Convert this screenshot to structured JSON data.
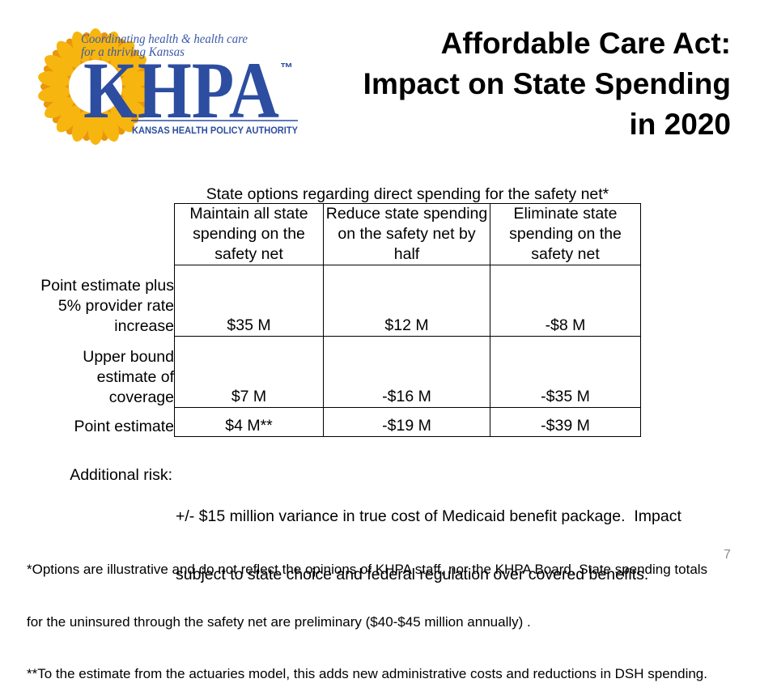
{
  "slide": {
    "title_lines": [
      "Affordable Care Act:",
      "Impact on State Spending",
      "in 2020"
    ],
    "page_number": "7"
  },
  "logo": {
    "tagline_lines": [
      "Coordinating health & health care",
      "for a thriving Kansas"
    ],
    "wordmark": "KHPA",
    "trademark": "™",
    "org_name": "KANSAS HEALTH POLICY AUTHORITY",
    "colors": {
      "brand_blue": "#2C4DA0",
      "tagline_blue": "#3A5AA8",
      "petal": "#F7B60F",
      "petal_dark": "#EA960C"
    }
  },
  "table": {
    "caption": "State options regarding direct spending for the safety net*",
    "columns": [
      {
        "header_lines": [
          "Maintain all state",
          "spending on the",
          "safety net"
        ]
      },
      {
        "header_lines": [
          "Reduce state spending",
          "on the safety net by",
          "half"
        ]
      },
      {
        "header_lines": [
          "Eliminate state",
          "spending on the",
          "safety net"
        ]
      }
    ],
    "rows": [
      {
        "label_lines": [
          "Point estimate plus",
          "5% provider rate",
          "increase"
        ],
        "values": [
          "$35 M",
          "$12 M",
          "-$8 M"
        ]
      },
      {
        "label_lines": [
          "Upper bound",
          "estimate of",
          "coverage"
        ],
        "values": [
          "$7 M",
          "-$16 M",
          "-$35 M"
        ]
      },
      {
        "label_lines": [
          "Point estimate"
        ],
        "values": [
          "$4 M**",
          "-$19 M",
          "-$39 M"
        ]
      }
    ]
  },
  "additional_risk": {
    "label": "Additional risk:",
    "text_lines": [
      "+/- $15 million variance in true cost of Medicaid benefit package.  Impact",
      "subject to state choice and federal regulation over covered benefits."
    ]
  },
  "footnotes": [
    "*Options are illustrative and do not reflect the opinions of KHPA staff, nor the KHPA Board. State spending totals",
    "for the uninsured through the safety net are preliminary ($40-$45 million annually) .",
    "**To the estimate from the actuaries model, this adds new administrative costs and reductions in DSH spending."
  ]
}
